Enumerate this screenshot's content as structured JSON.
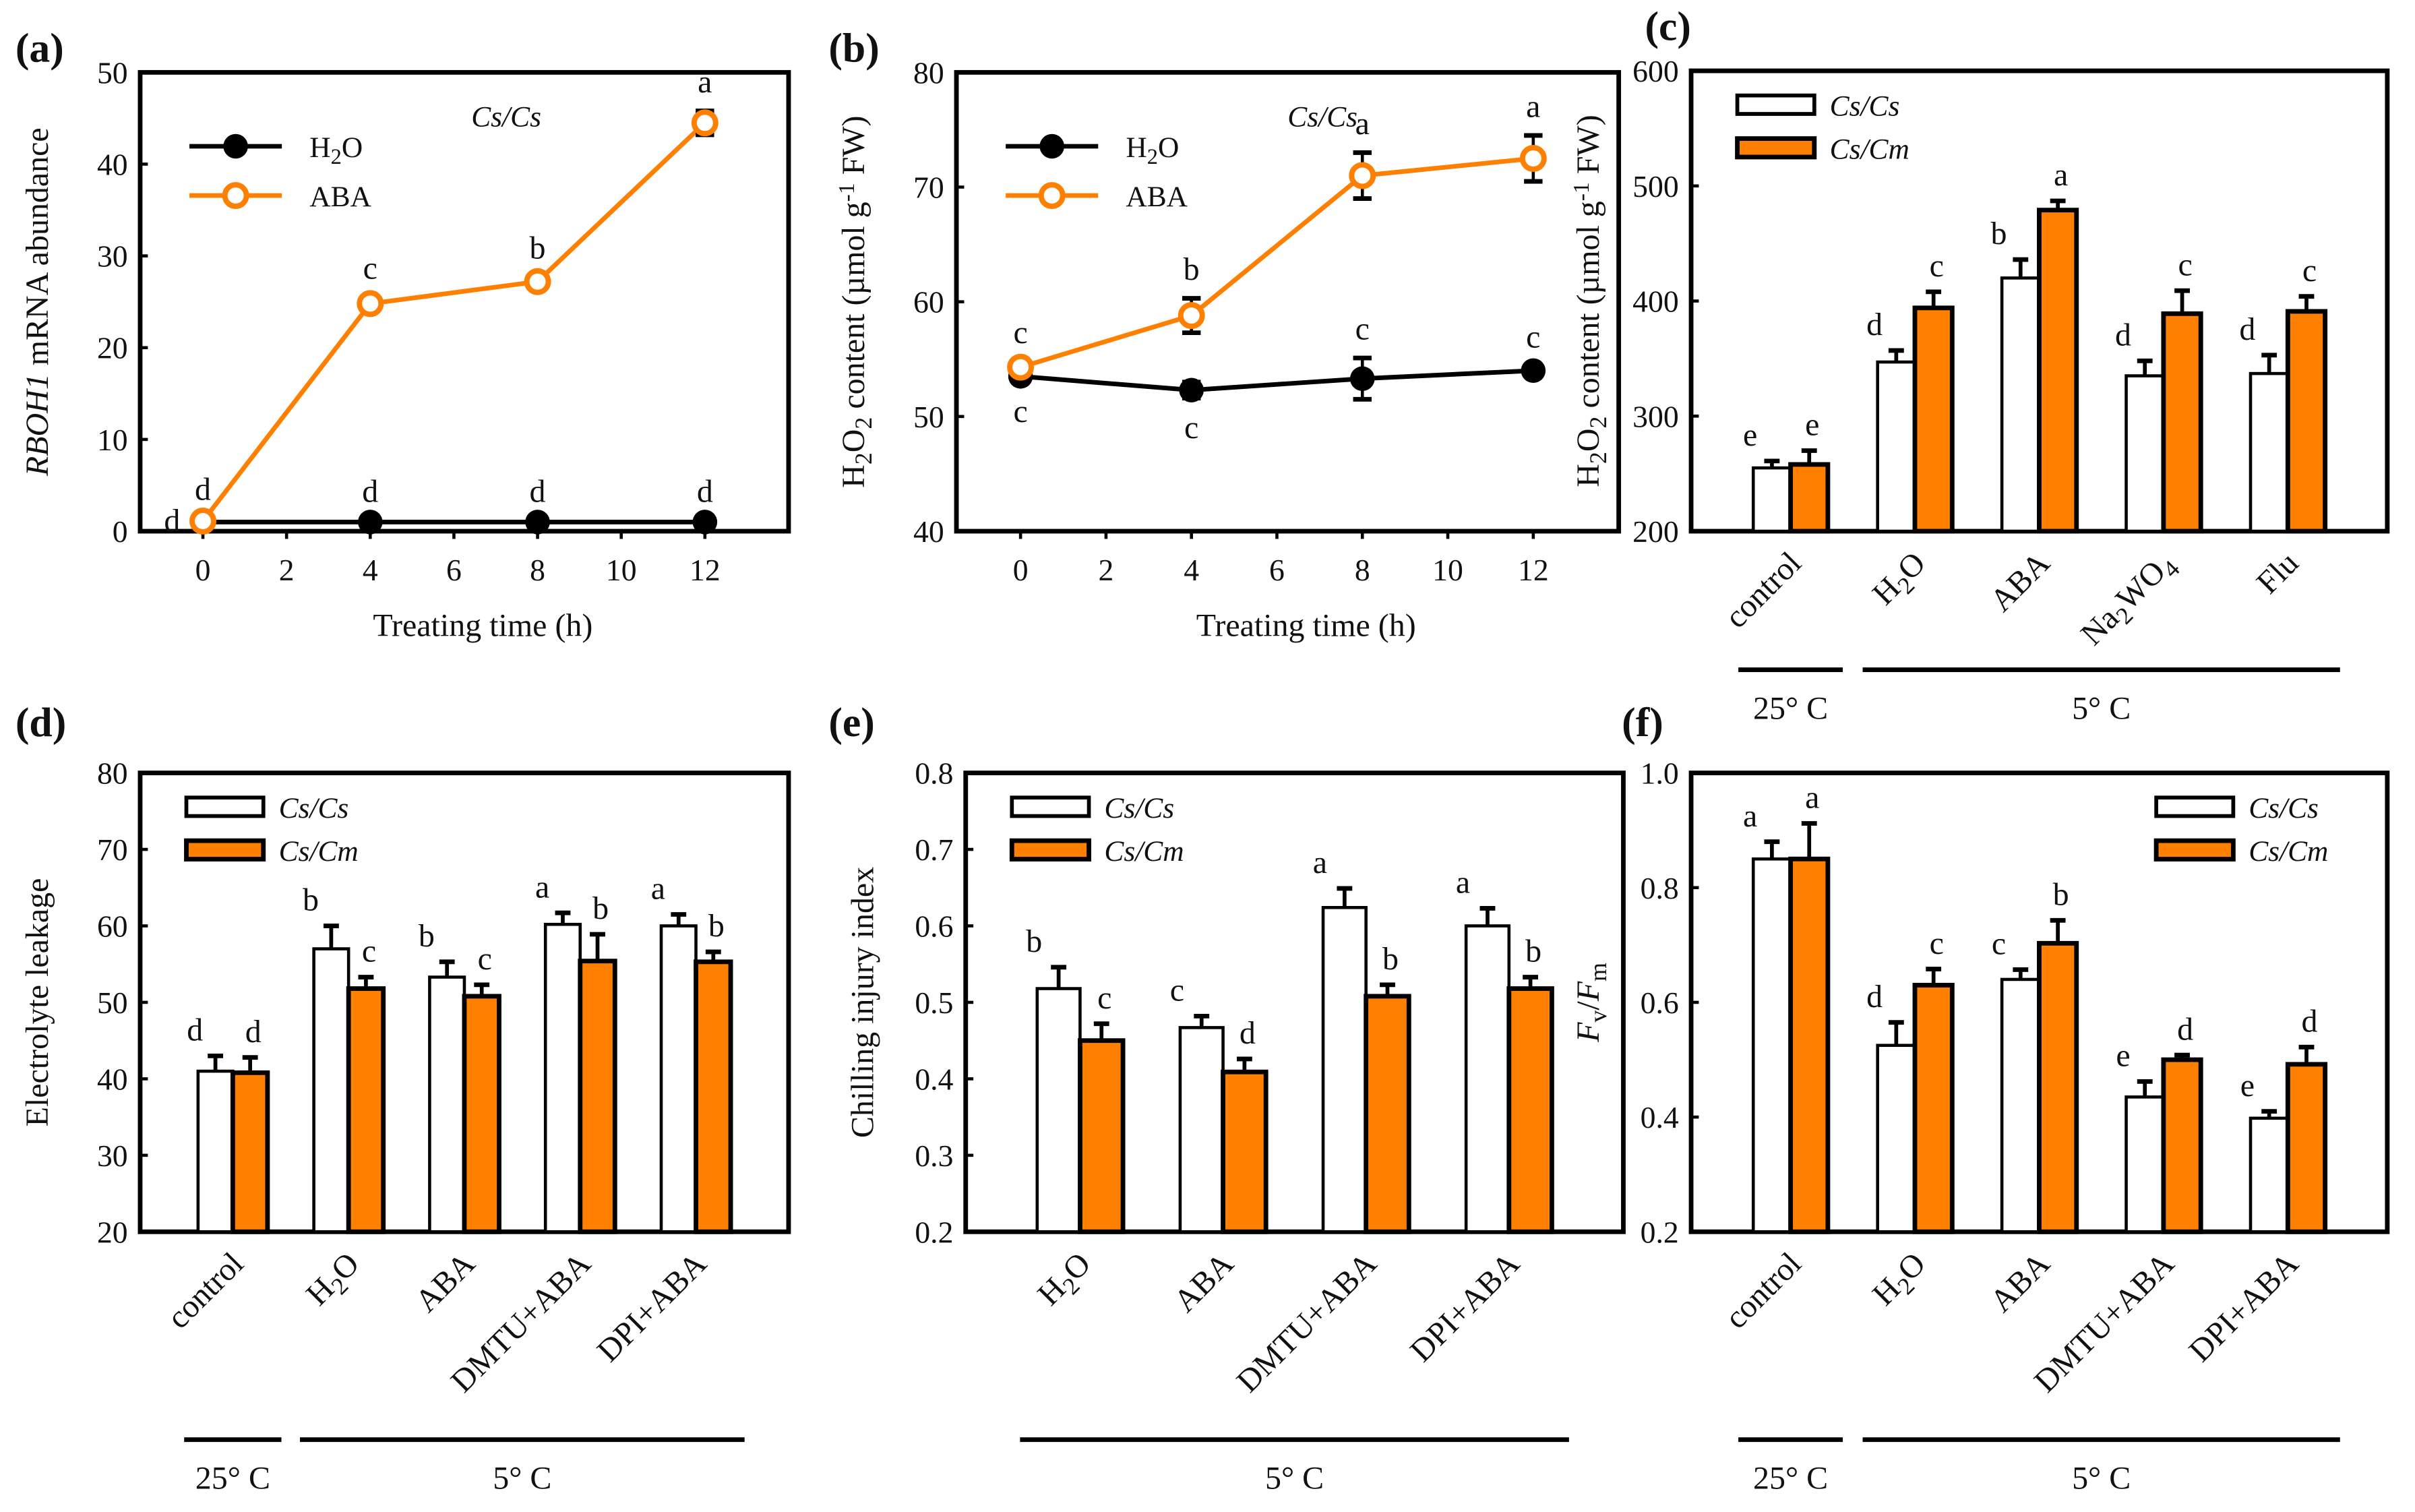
{
  "colors": {
    "orange": "#FF8000",
    "black": "#000000",
    "white": "#ffffff"
  },
  "chart_data": [
    {
      "id": "a",
      "panel_label": "(a)",
      "type": "line",
      "title": "",
      "annotation": "Cs/Cs",
      "xlabel": "Treating time (h)",
      "ylabel": "RBOH1 mRNA abundance",
      "ylabel_italic_part": "RBOH1",
      "ylabel_rest": " mRNA abundance",
      "xlim": [
        -1.5,
        14
      ],
      "ylim": [
        0,
        50
      ],
      "xticks": [
        0,
        2,
        4,
        6,
        8,
        10,
        12
      ],
      "yticks": [
        0,
        10,
        20,
        30,
        40,
        50
      ],
      "legend": "top-left",
      "x": [
        0,
        4,
        8,
        12
      ],
      "series": [
        {
          "name": "H2O",
          "label_main": "H",
          "label_sub": "2",
          "label_tail": "O",
          "marker": "filled-circle",
          "color": "#000000",
          "values": [
            1,
            1,
            1,
            1
          ],
          "errors": [
            0.2,
            0.2,
            0.2,
            0.2
          ],
          "letters": [
            "d",
            "d",
            "d",
            "d"
          ],
          "letter_pos": [
            "left",
            "above",
            "above",
            "above"
          ]
        },
        {
          "name": "ABA",
          "label_main": "ABA",
          "marker": "open-circle",
          "color": "#FF8000",
          "values": [
            1.1,
            24.8,
            27.2,
            44.5
          ],
          "errors": [
            0.3,
            0.7,
            0.5,
            1.3
          ],
          "letters": [
            "d",
            "c",
            "b",
            "a"
          ],
          "letter_pos": [
            "above",
            "above",
            "above",
            "above"
          ]
        }
      ]
    },
    {
      "id": "b",
      "panel_label": "(b)",
      "type": "line",
      "annotation": "Cs/Cs",
      "xlabel": "Treating time (h)",
      "ylabel": "H2O2 content (µmol g-1 FW)",
      "xlim": [
        -1.5,
        14
      ],
      "ylim": [
        40,
        80
      ],
      "xticks": [
        0,
        2,
        4,
        6,
        8,
        10,
        12
      ],
      "yticks": [
        40,
        50,
        60,
        70,
        80
      ],
      "legend": "top-left",
      "x": [
        0,
        4,
        8,
        12
      ],
      "series": [
        {
          "name": "H2O",
          "label_main": "H",
          "label_sub": "2",
          "label_tail": "O",
          "marker": "filled-circle",
          "color": "#000000",
          "values": [
            53.5,
            52.3,
            53.3,
            54.0
          ],
          "errors": [
            0.5,
            0.7,
            1.8,
            0.4
          ],
          "letters": [
            "c",
            "c",
            "c",
            "c"
          ],
          "letter_pos": [
            "below",
            "below",
            "above",
            "above"
          ]
        },
        {
          "name": "ABA",
          "label_main": "ABA",
          "marker": "open-circle",
          "color": "#FF8000",
          "values": [
            54.3,
            58.8,
            71.0,
            72.5
          ],
          "errors": [
            0.5,
            1.5,
            2.0,
            2.0
          ],
          "letters": [
            "c",
            "b",
            "a",
            "a"
          ],
          "letter_pos": [
            "above",
            "above",
            "above",
            "above"
          ]
        }
      ]
    },
    {
      "id": "c",
      "panel_label": "(c)",
      "type": "bar",
      "xlabel": "",
      "ylabel": "H2O2 content (µmol g-1 FW)",
      "ylim": [
        200,
        600
      ],
      "yticks": [
        200,
        300,
        400,
        500,
        600
      ],
      "legend": "top-left",
      "categories": [
        "control",
        "H2O",
        "ABA",
        "Na2WO4",
        "Flu"
      ],
      "groups": [
        {
          "label": "25° C",
          "from": 0,
          "to": 0
        },
        {
          "label": "5° C",
          "from": 1,
          "to": 4
        }
      ],
      "series": [
        {
          "name": "Cs/Cs",
          "color": "#ffffff",
          "values": [
            255,
            347,
            420,
            335,
            337
          ],
          "errors": [
            6,
            10,
            16,
            13,
            16
          ],
          "letters": [
            "e",
            "d",
            "b",
            "d",
            "d"
          ]
        },
        {
          "name": "Cs/Cm",
          "color": "#FF8000",
          "values": [
            258,
            394,
            479,
            389,
            391
          ],
          "errors": [
            12,
            14,
            8,
            20,
            13
          ],
          "letters": [
            "e",
            "c",
            "a",
            "c",
            "c"
          ]
        }
      ]
    },
    {
      "id": "d",
      "panel_label": "(d)",
      "type": "bar",
      "ylabel": "Electrolyte leakage",
      "ylim": [
        20,
        80
      ],
      "yticks": [
        20,
        30,
        40,
        50,
        60,
        70,
        80
      ],
      "legend": "top-left",
      "categories": [
        "control",
        "H2O",
        "ABA",
        "DMTU+ABA",
        "DPI+ABA"
      ],
      "groups": [
        {
          "label": "25° C",
          "from": 0,
          "to": 0
        },
        {
          "label": "5° C",
          "from": 1,
          "to": 4
        }
      ],
      "series": [
        {
          "name": "Cs/Cs",
          "color": "#ffffff",
          "values": [
            41.0,
            57.0,
            53.3,
            60.2,
            60.0
          ],
          "errors": [
            2.0,
            3.0,
            2.0,
            1.5,
            1.5
          ],
          "letters": [
            "d",
            "b",
            "b",
            "a",
            "a"
          ]
        },
        {
          "name": "Cs/Cm",
          "color": "#FF8000",
          "values": [
            40.8,
            51.8,
            50.8,
            55.4,
            55.3
          ],
          "errors": [
            2.0,
            1.5,
            1.5,
            3.5,
            1.3
          ],
          "letters": [
            "d",
            "c",
            "c",
            "b",
            "b"
          ]
        }
      ]
    },
    {
      "id": "e",
      "panel_label": "(e)",
      "type": "bar",
      "ylabel": "Chilling injury index",
      "ylim": [
        0.2,
        0.8
      ],
      "yticks": [
        0.2,
        0.3,
        0.4,
        0.5,
        0.6,
        0.7,
        0.8
      ],
      "legend": "top-left",
      "categories": [
        "H2O",
        "ABA",
        "DMTU+ABA",
        "DPI+ABA"
      ],
      "groups": [
        {
          "label": "5° C",
          "from": 0,
          "to": 3
        }
      ],
      "series": [
        {
          "name": "Cs/Cs",
          "color": "#ffffff",
          "values": [
            0.518,
            0.467,
            0.624,
            0.6
          ],
          "errors": [
            0.028,
            0.015,
            0.025,
            0.023
          ],
          "letters": [
            "b",
            "c",
            "a",
            "a"
          ]
        },
        {
          "name": "Cs/Cm",
          "color": "#FF8000",
          "values": [
            0.45,
            0.409,
            0.508,
            0.518
          ],
          "errors": [
            0.022,
            0.017,
            0.015,
            0.015
          ],
          "letters": [
            "c",
            "d",
            "b",
            "b"
          ]
        }
      ]
    },
    {
      "id": "f",
      "panel_label": "(f)",
      "type": "bar",
      "ylabel": "Fv/Fm",
      "ylim": [
        0.2,
        1.0
      ],
      "yticks": [
        0.2,
        0.4,
        0.6,
        0.8,
        1.0
      ],
      "legend": "top-right",
      "categories": [
        "control",
        "H2O",
        "ABA",
        "DMTU+ABA",
        "DPI+ABA"
      ],
      "groups": [
        {
          "label": "25° C",
          "from": 0,
          "to": 0
        },
        {
          "label": "5° C",
          "from": 1,
          "to": 4
        }
      ],
      "series": [
        {
          "name": "Cs/Cs",
          "color": "#ffffff",
          "values": [
            0.85,
            0.525,
            0.64,
            0.435,
            0.398
          ],
          "errors": [
            0.03,
            0.04,
            0.017,
            0.027,
            0.012
          ],
          "letters": [
            "a",
            "d",
            "c",
            "e",
            "e"
          ]
        },
        {
          "name": "Cs/Cm",
          "color": "#FF8000",
          "values": [
            0.85,
            0.63,
            0.703,
            0.5,
            0.492
          ],
          "errors": [
            0.062,
            0.028,
            0.04,
            0.008,
            0.03
          ],
          "letters": [
            "a",
            "c",
            "b",
            "d",
            "d"
          ]
        }
      ]
    }
  ]
}
